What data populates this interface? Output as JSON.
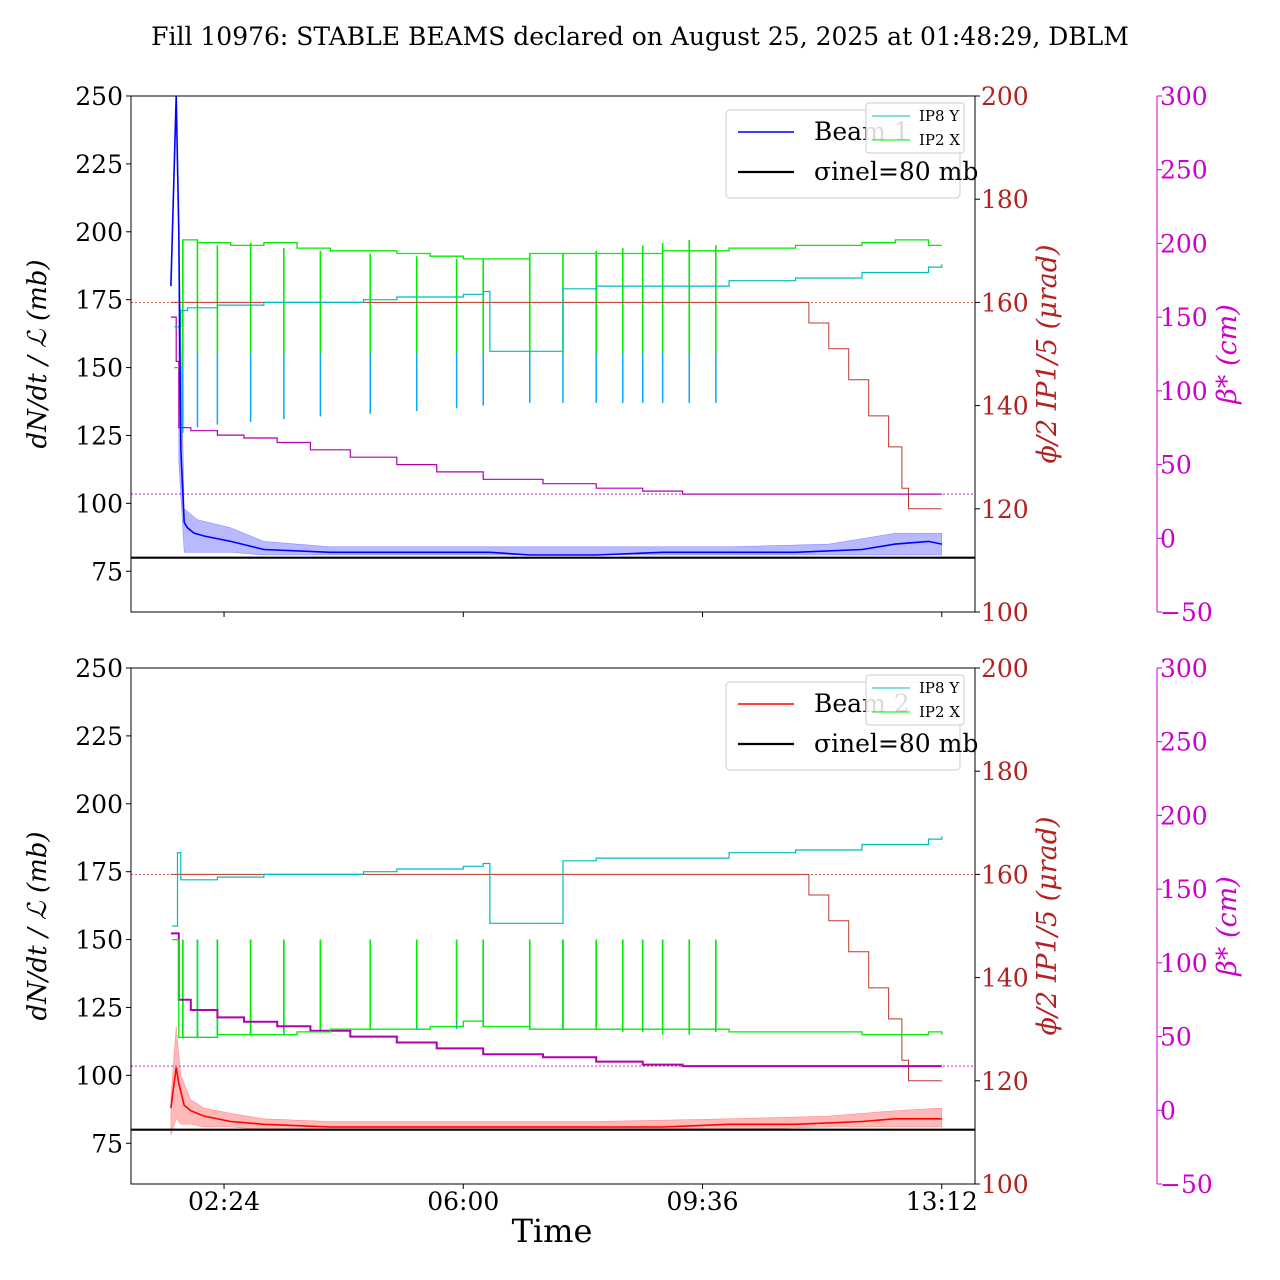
{
  "title": "Fill 10976: STABLE BEAMS declared on August 25, 2025 at 01:48:29, DBLM",
  "xlabel": "Time",
  "colors": {
    "beam1": "#0000ff",
    "beam1_band": "#8080ff",
    "beam2": "#ff0000",
    "beam2_band": "#ff8080",
    "ip8y": "#00bcbc",
    "ip2x": "#00ee00",
    "spikes": "#00aaff",
    "phi": "#c0392b",
    "beta": "#b000b0",
    "sigma": "#000000",
    "phi_axis": "#b22222",
    "beta_axis": "#cc00cc"
  },
  "chart_data": [
    {
      "type": "line",
      "panel": "Beam 1",
      "ylabel": "dN/dt / ℒ (mb)",
      "ylabel_right": "ϕ/2 IP1/5 (μrad)",
      "ylabel_far_right": "β* (cm)",
      "ylim": [
        60,
        250
      ],
      "y2lim": [
        100,
        200
      ],
      "y3lim": [
        -50,
        300
      ],
      "yticks": [
        "75",
        "100",
        "125",
        "150",
        "175",
        "200",
        "225",
        "250"
      ],
      "y2ticks": [
        "100",
        "120",
        "140",
        "160",
        "180",
        "200"
      ],
      "y3ticks": [
        "−50",
        "0",
        "50",
        "100",
        "150",
        "200",
        "250",
        "300"
      ],
      "xticks": [
        "02:24",
        "06:00",
        "09:36",
        "13:12"
      ],
      "show_xticklabels": false,
      "legend_main": [
        "Beam 1",
        "σinel=80 mb"
      ],
      "legend_small": [
        "IP8 Y",
        "IP2 X"
      ],
      "legend_main_position": "top-right",
      "legend_small_position": "top-right",
      "sigma_inel_mb": 80,
      "ref_lines": [
        {
          "axis": "phi",
          "value": 160
        },
        {
          "axis": "beta",
          "value": 30
        }
      ],
      "series": [
        {
          "name": "Beam 1",
          "role": "main",
          "x_hours": [
            1.6,
            1.68,
            1.72,
            1.75,
            1.8,
            1.85,
            1.95,
            2.1,
            2.5,
            3.0,
            4.0,
            5.0,
            6.0,
            6.4,
            7.0,
            8.0,
            9.0,
            10.0,
            11.0,
            12.0,
            12.5,
            13.0,
            13.2
          ],
          "y": [
            180,
            250,
            200,
            120,
            93,
            91,
            89,
            88,
            86,
            83,
            82,
            82,
            82,
            82,
            81,
            81,
            82,
            82,
            82,
            83,
            85,
            86,
            85
          ]
        },
        {
          "name": "band",
          "role": "band",
          "x_hours": [
            1.72,
            1.8,
            2.0,
            2.5,
            3.0,
            4.0,
            6.0,
            8.0,
            10.0,
            11.5,
            12.5,
            13.2
          ],
          "upper": [
            200,
            98,
            94,
            91,
            86,
            84,
            84,
            84,
            84,
            85,
            89,
            89
          ],
          "lower": [
            115,
            82,
            82,
            82,
            81,
            81,
            81,
            81,
            81,
            81,
            81,
            81
          ]
        },
        {
          "name": "IP8 Y",
          "role": "ip8",
          "x_hours": [
            1.65,
            1.75,
            1.85,
            2.3,
            3.0,
            4.5,
            5.0,
            6.0,
            6.3,
            6.4,
            7.5,
            7.5,
            8.0,
            9.0,
            10.0,
            11.0,
            12.0,
            13.0,
            13.2
          ],
          "y": [
            165,
            171,
            172,
            173,
            174,
            175,
            176,
            177,
            178,
            156,
            156,
            179,
            180,
            180,
            182,
            183,
            185,
            187,
            188
          ]
        },
        {
          "name": "IP2 X",
          "role": "ip2",
          "x_hours": [
            1.65,
            1.78,
            2.0,
            2.5,
            3.0,
            3.5,
            4.0,
            5.0,
            5.5,
            6.0,
            6.3,
            7.0,
            8.0,
            9.0,
            10.0,
            11.0,
            12.0,
            12.5,
            13.0,
            13.2
          ],
          "y": [
            150,
            197,
            196,
            195,
            196,
            194,
            193,
            192,
            191,
            190,
            190,
            192,
            192,
            193,
            194,
            195,
            196,
            197,
            195,
            195
          ]
        },
        {
          "name": "spikes",
          "role": "spikes",
          "x_hours": [
            1.78,
            2.0,
            2.3,
            2.8,
            3.3,
            3.85,
            4.6,
            5.3,
            5.9,
            6.3,
            7.0,
            7.5,
            8.0,
            8.4,
            8.7,
            9.0,
            9.4,
            9.8
          ],
          "y_bottom": [
            126,
            128,
            129,
            130,
            131,
            132,
            133,
            134,
            135,
            136,
            137,
            137,
            137,
            137,
            137,
            137,
            137,
            137
          ],
          "y_top": [
            155,
            155,
            155,
            155,
            155,
            155,
            155,
            155,
            155,
            155,
            155,
            155,
            155,
            155,
            155,
            155,
            155,
            155
          ]
        },
        {
          "name": "beta",
          "role": "beta",
          "axis": "beta",
          "x_hours": [
            1.6,
            1.68,
            1.72,
            1.9,
            2.3,
            2.7,
            3.2,
            3.7,
            4.3,
            5.0,
            5.6,
            6.3,
            7.2,
            8.0,
            8.7,
            9.3,
            10.0,
            11.0,
            12.0,
            13.2
          ],
          "y": [
            150,
            120,
            75,
            73,
            70,
            68,
            65,
            60,
            55,
            50,
            45,
            40,
            37,
            34,
            32,
            30,
            30,
            30,
            30,
            30
          ]
        },
        {
          "name": "phi",
          "role": "phi",
          "axis": "phi",
          "x_hours": [
            1.6,
            6.0,
            8.0,
            10.0,
            10.9,
            11.2,
            11.5,
            11.8,
            12.1,
            12.4,
            12.6,
            12.7,
            13.2
          ],
          "y": [
            160,
            160,
            160,
            160,
            160,
            156,
            151,
            145,
            138,
            132,
            124,
            120,
            120
          ]
        }
      ]
    },
    {
      "type": "line",
      "panel": "Beam 2",
      "ylabel": "dN/dt / ℒ (mb)",
      "ylabel_right": "ϕ/2 IP1/5 (μrad)",
      "ylabel_far_right": "β* (cm)",
      "ylim": [
        60,
        250
      ],
      "y2lim": [
        100,
        200
      ],
      "y3lim": [
        -50,
        300
      ],
      "yticks": [
        "75",
        "100",
        "125",
        "150",
        "175",
        "200",
        "225",
        "250"
      ],
      "y2ticks": [
        "100",
        "120",
        "140",
        "160",
        "180",
        "200"
      ],
      "y3ticks": [
        "−50",
        "0",
        "50",
        "100",
        "150",
        "200",
        "250",
        "300"
      ],
      "xticks": [
        "02:24",
        "06:00",
        "09:36",
        "13:12"
      ],
      "show_xticklabels": true,
      "legend_main": [
        "Beam 2",
        "σinel=80 mb"
      ],
      "legend_small": [
        "IP8 Y",
        "IP2 X"
      ],
      "legend_main_position": "top-right",
      "legend_small_position": "top-right",
      "sigma_inel_mb": 80,
      "ref_lines": [
        {
          "axis": "phi",
          "value": 160
        },
        {
          "axis": "beta",
          "value": 30
        }
      ],
      "series": [
        {
          "name": "Beam 2",
          "role": "main",
          "x_hours": [
            1.6,
            1.68,
            1.72,
            1.8,
            1.9,
            2.1,
            2.5,
            3.0,
            4.0,
            5.0,
            6.0,
            7.0,
            8.0,
            9.0,
            10.0,
            11.0,
            12.0,
            12.5,
            13.2
          ],
          "y": [
            88,
            103,
            97,
            89,
            87,
            85,
            83,
            82,
            81,
            81,
            81,
            81,
            81,
            81,
            82,
            82,
            83,
            84,
            84
          ]
        },
        {
          "name": "band",
          "role": "band",
          "x_hours": [
            1.6,
            1.68,
            1.75,
            1.9,
            2.1,
            2.5,
            3.0,
            4.0,
            6.0,
            8.0,
            10.0,
            11.5,
            12.5,
            13.2
          ],
          "upper": [
            92,
            118,
            100,
            91,
            88,
            86,
            84,
            83,
            83,
            83,
            84,
            85,
            87,
            88
          ],
          "lower": [
            78,
            84,
            82,
            82,
            81,
            81,
            80,
            80,
            80,
            80,
            80,
            81,
            81,
            81
          ]
        },
        {
          "name": "IP8 Y",
          "role": "ip8",
          "x_hours": [
            1.62,
            1.7,
            1.75,
            1.85,
            2.3,
            3.0,
            4.5,
            5.0,
            6.0,
            6.3,
            6.4,
            7.5,
            7.5,
            8.0,
            9.0,
            10.0,
            11.0,
            12.0,
            13.0,
            13.2
          ],
          "y": [
            155,
            182,
            172,
            172,
            173,
            174,
            175,
            176,
            177,
            178,
            156,
            156,
            179,
            180,
            180,
            182,
            183,
            185,
            187,
            188
          ]
        },
        {
          "name": "IP2 X",
          "role": "ip2",
          "x_hours": [
            1.62,
            1.72,
            1.85,
            2.3,
            3.0,
            3.5,
            4.0,
            5.0,
            5.5,
            6.0,
            6.3,
            7.0,
            8.0,
            9.0,
            10.0,
            11.0,
            12.0,
            12.5,
            13.0,
            13.2
          ],
          "y": [
            150,
            114,
            114,
            115,
            115,
            116,
            117,
            117,
            118,
            120,
            118,
            117,
            117,
            117,
            116,
            116,
            115,
            115,
            116,
            115
          ]
        },
        {
          "name": "spikes",
          "role": "spikes",
          "x_hours": [
            1.78,
            2.0,
            2.3,
            2.8,
            3.3,
            3.85,
            4.6,
            5.3,
            5.9,
            6.3,
            7.0,
            7.5,
            8.0,
            8.4,
            8.7,
            9.0,
            9.4,
            9.8
          ],
          "y_bottom": [
            114,
            114,
            115,
            115,
            115,
            116,
            117,
            117,
            117,
            118,
            117,
            117,
            117,
            117,
            117,
            117,
            117,
            117
          ],
          "y_top": [
            150,
            150,
            150,
            150,
            150,
            150,
            150,
            150,
            150,
            150,
            150,
            150,
            150,
            150,
            150,
            150,
            150,
            150
          ]
        },
        {
          "name": "beta",
          "role": "beta",
          "axis": "beta",
          "x_hours": [
            1.6,
            1.68,
            1.72,
            1.9,
            2.3,
            2.7,
            3.2,
            3.7,
            4.3,
            5.0,
            5.6,
            6.3,
            7.2,
            8.0,
            8.7,
            9.3,
            10.0,
            11.0,
            12.0,
            13.2
          ],
          "y": [
            120,
            120,
            75,
            68,
            63,
            60,
            57,
            54,
            50,
            46,
            42,
            38,
            36,
            33,
            31,
            30,
            30,
            30,
            30,
            30
          ]
        },
        {
          "name": "phi",
          "role": "phi",
          "axis": "phi",
          "x_hours": [
            1.6,
            6.0,
            8.0,
            10.0,
            10.9,
            11.2,
            11.5,
            11.8,
            12.1,
            12.4,
            12.6,
            12.7,
            13.2
          ],
          "y": [
            160,
            160,
            160,
            160,
            160,
            156,
            151,
            145,
            138,
            132,
            124,
            120,
            120
          ]
        }
      ]
    }
  ]
}
